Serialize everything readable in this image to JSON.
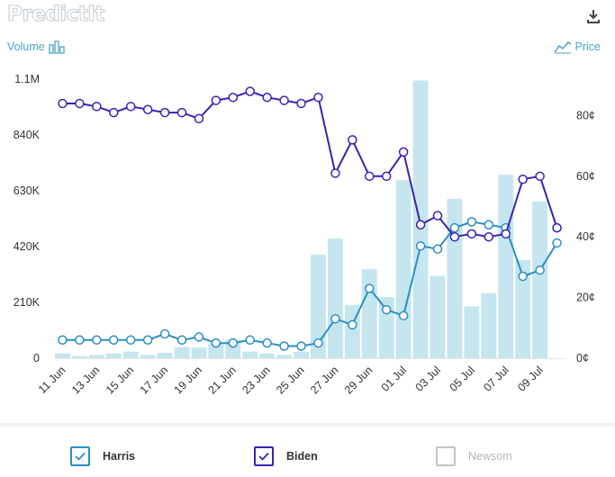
{
  "header": {
    "logo_text": "PredictIt",
    "volume_label": "Volume",
    "price_label": "Price"
  },
  "legend": [
    {
      "name": "Harris",
      "checked": true,
      "color": "#2b8fc2"
    },
    {
      "name": "Biden",
      "checked": true,
      "color": "#3a22b3"
    },
    {
      "name": "Newsom",
      "checked": false,
      "color": "#b5b5b5"
    }
  ],
  "chart_data": {
    "type": "bar+line",
    "title": "",
    "x_tick_labels": [
      "11 Jun",
      "13 Jun",
      "15 Jun",
      "17 Jun",
      "19 Jun",
      "21 Jun",
      "23 Jun",
      "25 Jun",
      "27 Jun",
      "29 Jun",
      "01 Jul",
      "03 Jul",
      "05 Jul",
      "07 Jul",
      "09 Jul"
    ],
    "left_axis": {
      "label": "Volume",
      "ticks": [
        "0",
        "210K",
        "420K",
        "630K",
        "840K",
        "1.1M"
      ],
      "tick_values": [
        0,
        210000,
        420000,
        630000,
        840000,
        1050000
      ],
      "range": [
        0,
        1050000
      ]
    },
    "right_axis": {
      "label": "Price",
      "ticks": [
        "0¢",
        "20¢",
        "40¢",
        "60¢",
        "80¢"
      ],
      "tick_values": [
        0,
        20,
        40,
        60,
        80
      ],
      "range": [
        0,
        92
      ]
    },
    "volume": {
      "name": "Volume",
      "color": "#c5e6ef",
      "dates": [
        "11 Jun",
        "12 Jun",
        "13 Jun",
        "14 Jun",
        "15 Jun",
        "16 Jun",
        "17 Jun",
        "18 Jun",
        "19 Jun",
        "20 Jun",
        "21 Jun",
        "22 Jun",
        "23 Jun",
        "24 Jun",
        "25 Jun",
        "26 Jun",
        "27 Jun",
        "28 Jun",
        "29 Jun",
        "30 Jun",
        "01 Jul",
        "02 Jul",
        "03 Jul",
        "04 Jul",
        "05 Jul",
        "06 Jul",
        "07 Jul",
        "08 Jul",
        "09 Jul",
        "10 Jul"
      ],
      "values": [
        18000,
        8000,
        12000,
        18000,
        25000,
        12000,
        20000,
        42000,
        40000,
        55000,
        70000,
        25000,
        18000,
        12000,
        25000,
        390000,
        450000,
        200000,
        335000,
        230000,
        670000,
        1045000,
        310000,
        600000,
        195000,
        245000,
        690000,
        370000,
        590000,
        0
      ]
    },
    "series": [
      {
        "name": "Harris",
        "color": "#2b8fc2",
        "dates": [
          "11 Jun",
          "12 Jun",
          "13 Jun",
          "14 Jun",
          "15 Jun",
          "16 Jun",
          "17 Jun",
          "18 Jun",
          "19 Jun",
          "20 Jun",
          "21 Jun",
          "22 Jun",
          "23 Jun",
          "24 Jun",
          "25 Jun",
          "26 Jun",
          "27 Jun",
          "28 Jun",
          "29 Jun",
          "30 Jun",
          "01 Jul",
          "02 Jul",
          "03 Jul",
          "04 Jul",
          "05 Jul",
          "06 Jul",
          "07 Jul",
          "08 Jul",
          "09 Jul",
          "10 Jul"
        ],
        "values": [
          6,
          6,
          6,
          6,
          6,
          6,
          8,
          6,
          7,
          5,
          5,
          6,
          5,
          4,
          4,
          5,
          13,
          11,
          23,
          16,
          14,
          37,
          36,
          43,
          45,
          44,
          43,
          27,
          29,
          38
        ]
      },
      {
        "name": "Biden",
        "color": "#3a22b3",
        "dates": [
          "11 Jun",
          "12 Jun",
          "13 Jun",
          "14 Jun",
          "15 Jun",
          "16 Jun",
          "17 Jun",
          "18 Jun",
          "19 Jun",
          "20 Jun",
          "21 Jun",
          "22 Jun",
          "23 Jun",
          "24 Jun",
          "25 Jun",
          "26 Jun",
          "27 Jun",
          "28 Jun",
          "29 Jun",
          "30 Jun",
          "01 Jul",
          "02 Jul",
          "03 Jul",
          "04 Jul",
          "05 Jul",
          "06 Jul",
          "07 Jul",
          "08 Jul",
          "09 Jul",
          "10 Jul"
        ],
        "values": [
          84,
          84,
          83,
          81,
          83,
          82,
          81,
          81,
          79,
          85,
          86,
          88,
          86,
          85,
          84,
          86,
          61,
          72,
          60,
          60,
          68,
          44,
          47,
          40,
          41,
          40,
          41,
          59,
          60,
          43
        ]
      }
    ],
    "grid": false,
    "legend_position": "bottom"
  }
}
